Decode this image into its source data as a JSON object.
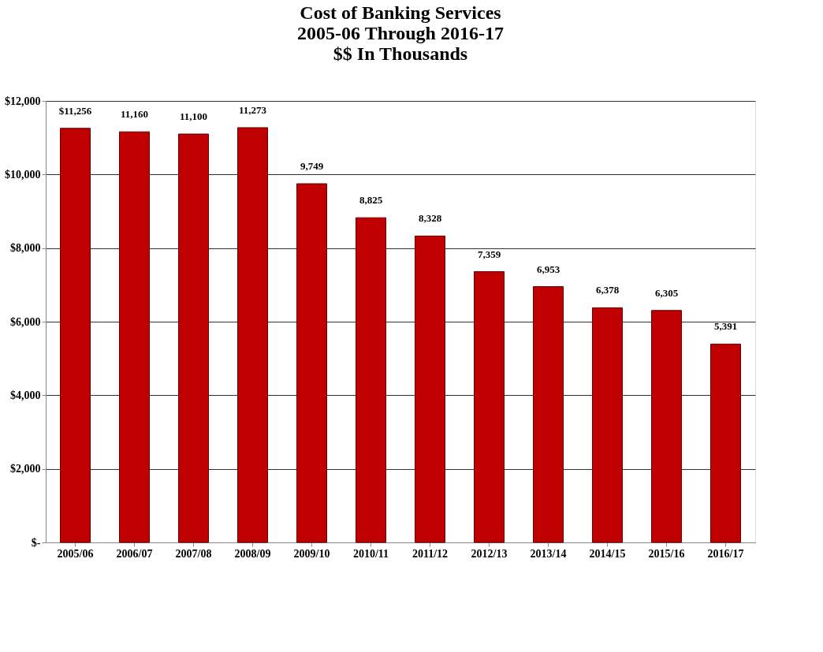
{
  "chart_data": {
    "type": "bar",
    "title": [
      "Cost of Banking Services",
      "2005-06 Through 2016-17",
      "$$ In Thousands"
    ],
    "categories": [
      "2005/06",
      "2006/07",
      "2007/08",
      "2008/09",
      "2009/10",
      "2010/11",
      "2011/12",
      "2012/13",
      "2013/14",
      "2014/15",
      "2015/16",
      "2016/17"
    ],
    "values": [
      11256,
      11160,
      11100,
      11273,
      9749,
      8825,
      8328,
      7359,
      6953,
      6378,
      6305,
      5391
    ],
    "value_labels": [
      "$11,256",
      "11,160",
      "11,100",
      "11,273",
      "9,749",
      "8,825",
      "8,328",
      "7,359",
      "6,953",
      "6,378",
      "6,305",
      "5,391"
    ],
    "color": "#c00000",
    "ylim": [
      0,
      12000
    ],
    "yticks": [
      {
        "value": 0,
        "label": "$-"
      },
      {
        "value": 2000,
        "label": "$2,000"
      },
      {
        "value": 4000,
        "label": "$4,000"
      },
      {
        "value": 6000,
        "label": "$6,000"
      },
      {
        "value": 8000,
        "label": "$8,000"
      },
      {
        "value": 10000,
        "label": "$10,000"
      },
      {
        "value": 12000,
        "label": "$12,000"
      }
    ],
    "grid": "y"
  }
}
